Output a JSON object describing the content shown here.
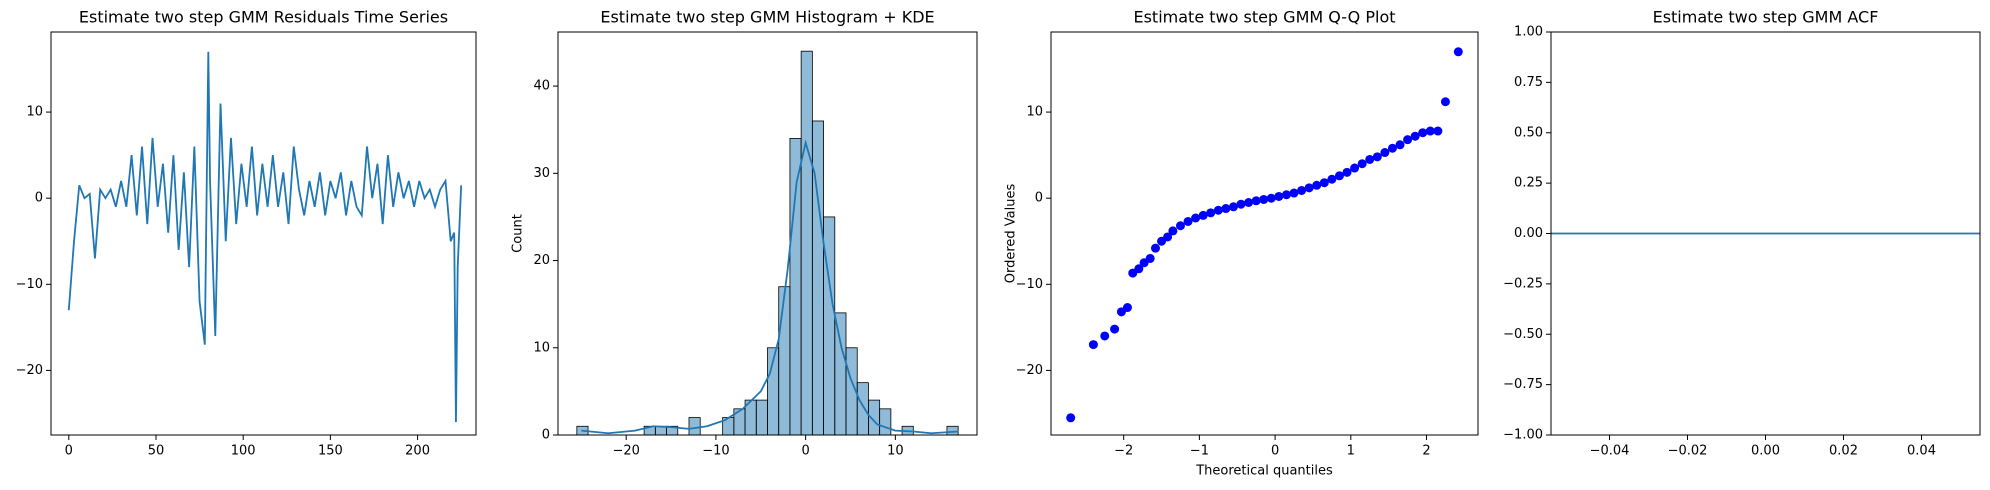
{
  "chart_data": [
    {
      "type": "line",
      "title": "Estimate two step GMM Residuals Time Series",
      "color": "#1f77b4",
      "x": [
        0,
        3,
        6,
        9,
        12,
        15,
        18,
        21,
        24,
        27,
        30,
        33,
        36,
        39,
        42,
        45,
        48,
        51,
        54,
        57,
        60,
        63,
        66,
        69,
        72,
        75,
        78,
        80,
        81,
        84,
        87,
        90,
        93,
        96,
        99,
        102,
        105,
        108,
        111,
        114,
        117,
        120,
        123,
        126,
        129,
        132,
        135,
        138,
        141,
        144,
        147,
        150,
        153,
        156,
        159,
        162,
        165,
        168,
        171,
        174,
        177,
        180,
        183,
        186,
        189,
        192,
        195,
        198,
        201,
        204,
        207,
        210,
        213,
        216,
        219,
        221,
        222,
        223,
        225
      ],
      "values": [
        -13,
        -5,
        1.5,
        0,
        0.5,
        -7,
        1,
        0,
        1,
        -1,
        2,
        -1,
        5,
        -2,
        6,
        -3,
        7,
        -1,
        4,
        -4,
        5,
        -6,
        3,
        -8,
        6,
        -12,
        -17,
        17,
        2,
        -16,
        11,
        -5,
        7,
        -3,
        4,
        -1,
        6,
        -2,
        4,
        -1,
        5,
        -1,
        3,
        -3,
        6,
        1,
        -2,
        2,
        -1,
        3,
        -2,
        2,
        0,
        3,
        -2,
        2,
        -1,
        -2,
        6,
        0,
        4,
        -3,
        5,
        -1,
        3,
        0,
        2,
        -1,
        2,
        0,
        1,
        -1,
        1,
        2,
        -5,
        -4,
        -26,
        -8,
        1.5
      ],
      "xlim": [
        -10.2,
        233.5
      ],
      "xticks": [
        0,
        50,
        100,
        150,
        200
      ],
      "ylim": [
        -27.5,
        19.3
      ],
      "yticks": [
        {
          "value": -20,
          "label": "−20"
        },
        {
          "value": -10,
          "label": "−10"
        },
        0,
        10
      ]
    },
    {
      "type": "histogram",
      "title": "Estimate two step GMM Histogram + KDE",
      "ylabel": "Count",
      "color": "#1f77b4",
      "bins": [
        -25.5,
        -24.25,
        -23,
        -21.75,
        -20.5,
        -19.25,
        -18,
        -16.75,
        -15.5,
        -14.25,
        -13,
        -11.75,
        -10.5,
        -9.25,
        -8,
        -6.75,
        -5.5,
        -4.25,
        -3,
        -1.75,
        -0.5,
        0.75,
        2,
        3.25,
        4.5,
        5.75,
        7,
        8.25,
        9.5,
        10.75,
        12,
        13.25,
        14.5,
        15.75,
        17
      ],
      "values": [
        1,
        0,
        0,
        0,
        0,
        0,
        1,
        1,
        1,
        0,
        2,
        0,
        0,
        2,
        3,
        4,
        4,
        10,
        17,
        34,
        44,
        36,
        25,
        14,
        10,
        6,
        4,
        3,
        0,
        1,
        0,
        0,
        0,
        1
      ],
      "kde": {
        "x": [
          -25,
          -22,
          -19,
          -17,
          -15,
          -13,
          -11,
          -9,
          -7,
          -5,
          -4,
          -3,
          -2,
          -1,
          0,
          1,
          2,
          3,
          4,
          5,
          6,
          7,
          8,
          10,
          12,
          14,
          17
        ],
        "values": [
          0.5,
          0.2,
          0.5,
          1,
          0.9,
          0.7,
          1,
          1.7,
          3,
          5,
          7,
          11,
          19,
          29,
          33.5,
          30,
          22,
          15,
          10,
          6.5,
          4,
          2.3,
          1.2,
          0.5,
          0.4,
          0.2,
          0.4
        ]
      },
      "xlim": [
        -27.6,
        19.1
      ],
      "xticks": [
        {
          "value": -20,
          "label": "−20"
        },
        {
          "value": -10,
          "label": "−10"
        },
        0,
        10
      ],
      "ylim": [
        0,
        46.2
      ],
      "yticks": [
        0,
        10,
        20,
        30,
        40
      ]
    },
    {
      "type": "scatter",
      "title": "Estimate two step GMM Q-Q Plot",
      "xlabel": "Theoretical quantiles",
      "ylabel": "Ordered Values",
      "color": "#0000ff",
      "x": [
        -2.7,
        -2.4,
        -2.25,
        -2.12,
        -2.03,
        -1.95,
        -1.88,
        -1.8,
        -1.73,
        -1.65,
        -1.58,
        -1.5,
        -1.42,
        -1.35,
        -1.25,
        -1.15,
        -1.05,
        -0.95,
        -0.85,
        -0.75,
        -0.65,
        -0.55,
        -0.45,
        -0.35,
        -0.25,
        -0.15,
        -0.05,
        0.05,
        0.15,
        0.25,
        0.35,
        0.45,
        0.55,
        0.65,
        0.75,
        0.85,
        0.95,
        1.05,
        1.15,
        1.25,
        1.35,
        1.45,
        1.55,
        1.65,
        1.75,
        1.85,
        1.95,
        2.05,
        2.15,
        2.25,
        2.42
      ],
      "values": [
        -25.5,
        -17,
        -16,
        -15.2,
        -13.2,
        -12.7,
        -8.7,
        -8.2,
        -7.5,
        -7,
        -5.8,
        -5,
        -4.5,
        -3.8,
        -3.2,
        -2.7,
        -2.3,
        -2,
        -1.7,
        -1.4,
        -1.2,
        -1,
        -0.7,
        -0.5,
        -0.3,
        -0.15,
        0,
        0.2,
        0.4,
        0.6,
        0.9,
        1.2,
        1.5,
        1.8,
        2.2,
        2.6,
        3,
        3.5,
        4,
        4.5,
        4.8,
        5.3,
        5.8,
        6.2,
        6.8,
        7.2,
        7.6,
        7.8,
        7.8,
        11.2,
        17
      ],
      "xlim": [
        -2.96,
        2.68
      ],
      "xticks": [
        {
          "value": -2,
          "label": "−2"
        },
        {
          "value": -1,
          "label": "−1"
        },
        0,
        1,
        2
      ],
      "ylim": [
        -27.5,
        19.3
      ],
      "yticks": [
        {
          "value": -20,
          "label": "−20"
        },
        {
          "value": -10,
          "label": "−10"
        },
        0,
        10
      ]
    },
    {
      "type": "line",
      "title": "Estimate two step GMM ACF",
      "color": "#1f77b4",
      "hline": 0,
      "xlim": [
        -0.055,
        0.055
      ],
      "xticks": [
        {
          "value": -0.04,
          "label": "−0.04"
        },
        {
          "value": -0.02,
          "label": "−0.02"
        },
        {
          "value": 0,
          "label": "0.00"
        },
        {
          "value": 0.02,
          "label": "0.02"
        },
        {
          "value": 0.04,
          "label": "0.04"
        }
      ],
      "ylim": [
        -1,
        1
      ],
      "yticks": [
        {
          "value": -1,
          "label": "−1.00"
        },
        {
          "value": -0.75,
          "label": "−0.75"
        },
        {
          "value": -0.5,
          "label": "−0.50"
        },
        {
          "value": -0.25,
          "label": "−0.25"
        },
        {
          "value": 0,
          "label": "0.00"
        },
        {
          "value": 0.25,
          "label": "0.25"
        },
        {
          "value": 0.5,
          "label": "0.50"
        },
        {
          "value": 0.75,
          "label": "0.75"
        },
        {
          "value": 1,
          "label": "1.00"
        }
      ]
    }
  ]
}
